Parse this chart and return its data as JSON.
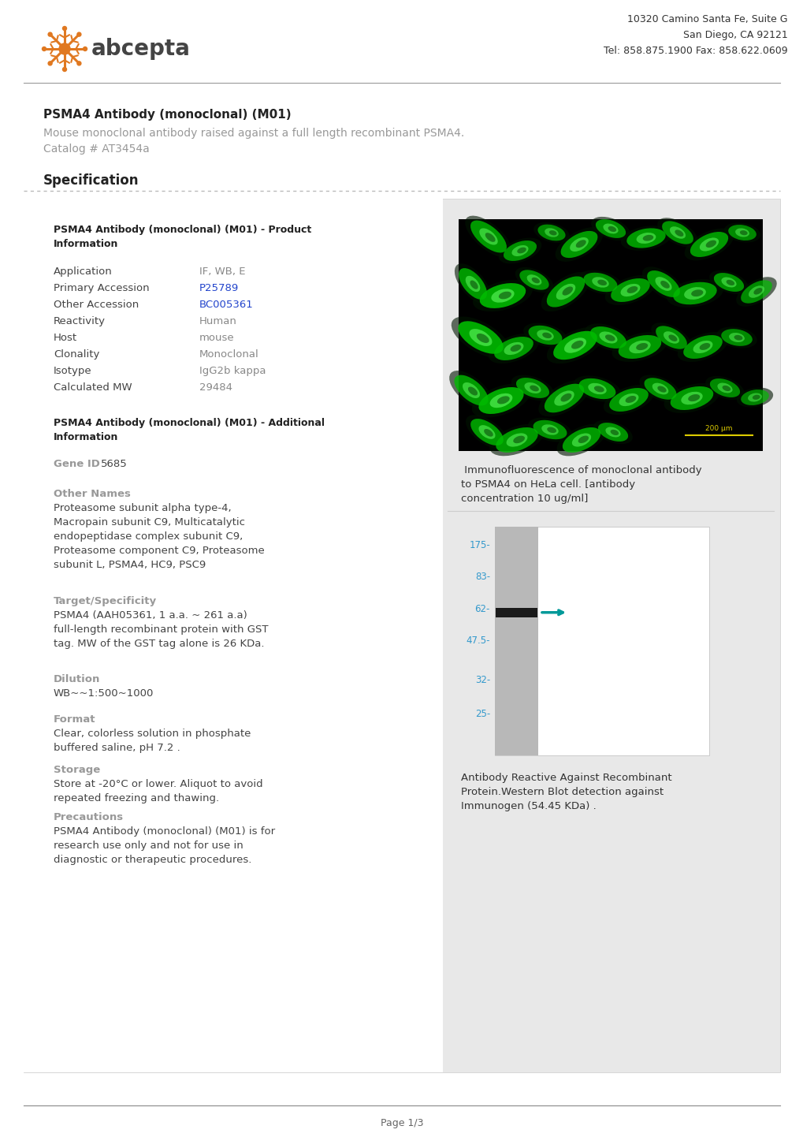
{
  "company_address": "10320 Camino Santa Fe, Suite G\nSan Diego, CA 92121\nTel: 858.875.1900 Fax: 858.622.0609",
  "title_bold": "PSMA4 Antibody (monoclonal) (M01)",
  "subtitle": "Mouse monoclonal antibody raised against a full length recombinant PSMA4.",
  "catalog": "Catalog # AT3454a",
  "section_title": "Specification",
  "product_info_header": "PSMA4 Antibody (monoclonal) (M01) - Product\nInformation",
  "fields_left": [
    "Application",
    "Primary Accession",
    "Other Accession",
    "Reactivity",
    "Host",
    "Clonality",
    "Isotype",
    "Calculated MW"
  ],
  "fields_right": [
    "IF, WB, E",
    "P25789",
    "BC005361",
    "Human",
    "mouse",
    "Monoclonal",
    "IgG2b kappa",
    "29484"
  ],
  "fields_links": [
    false,
    true,
    true,
    false,
    false,
    false,
    false,
    false
  ],
  "additional_info_header": "PSMA4 Antibody (monoclonal) (M01) - Additional\nInformation",
  "gene_id_label": "Gene ID",
  "gene_id_value": "5685",
  "other_names_label": "Other Names",
  "other_names_text": "Proteasome subunit alpha type-4,\nMacropain subunit C9, Multicatalytic\nendopeptidase complex subunit C9,\nProteasome component C9, Proteasome\nsubunit L, PSMA4, HC9, PSC9",
  "target_label": "Target/Specificity",
  "target_text": "PSMA4 (AAH05361, 1 a.a. ~ 261 a.a)\nfull-length recombinant protein with GST\ntag. MW of the GST tag alone is 26 KDa.",
  "dilution_label": "Dilution",
  "dilution_text": "WB~~1:500~1000",
  "format_label": "Format",
  "format_text": "Clear, colorless solution in phosphate\nbuffered saline, pH 7.2 .",
  "storage_label": "Storage",
  "storage_text": "Store at -20°C or lower. Aliquot to avoid\nrepeated freezing and thawing.",
  "precautions_label": "Precautions",
  "precautions_text": "PSMA4 Antibody (monoclonal) (M01) is for\nresearch use only and not for use in\ndiagnostic or therapeutic procedures.",
  "if_caption": " Immunofluorescence of monoclonal antibody\nto PSMA4 on HeLa cell. [antibody\nconcentration 10 ug/ml]",
  "wb_caption": "Antibody Reactive Against Recombinant\nProtein.Western Blot detection against\nImmunogen (54.45 KDa) .",
  "wb_markers": [
    [
      "175-",
      0.08
    ],
    [
      "83-",
      0.22
    ],
    [
      "62-",
      0.36
    ],
    [
      "47.5-",
      0.5
    ],
    [
      "32-",
      0.67
    ],
    [
      "25-",
      0.82
    ]
  ],
  "page_footer": "Page 1/3",
  "bg_color": "#ffffff",
  "header_line_color": "#888888",
  "section_line_color": "#aaaaaa",
  "spec_bg_color": "#e8e8e8",
  "label_color": "#999999",
  "value_color": "#888888",
  "link_color": "#2244cc",
  "bold_color": "#222222",
  "orange_color": "#e07820",
  "wb_number_color": "#3399cc",
  "left_panel_bg": "#ffffff"
}
